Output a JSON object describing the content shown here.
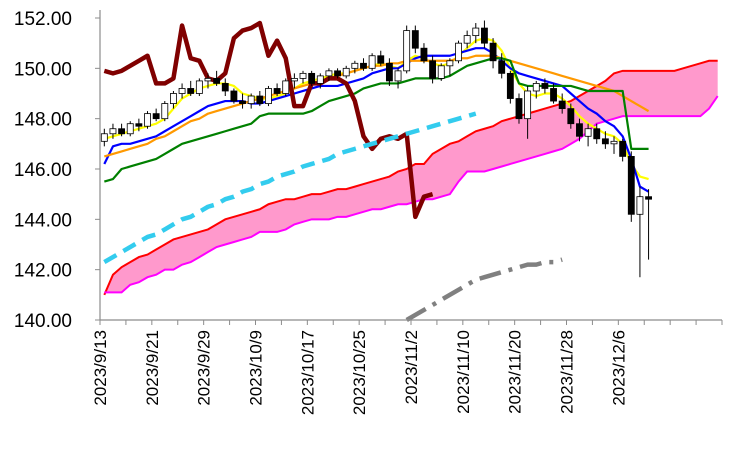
{
  "chart_data": {
    "type": "candlestick",
    "title": "",
    "xlabel": "",
    "ylabel": "",
    "ylim": [
      140,
      152
    ],
    "y_tick_labels": [
      "140.00",
      "142.00",
      "144.00",
      "146.00",
      "148.00",
      "150.00",
      "152.00"
    ],
    "y_ticks": [
      140,
      142,
      144,
      146,
      148,
      150,
      152
    ],
    "x_tick_labels": [
      "2023/9/13",
      "2023/9/21",
      "2023/9/29",
      "2023/10/9",
      "2023/10/17",
      "2023/10/25",
      "2023/11/2",
      "2023/11/10",
      "2023/11/20",
      "2023/11/28",
      "2023/12/6"
    ],
    "x_tick_index": [
      0,
      6,
      12,
      18,
      24,
      30,
      36,
      42,
      48,
      54,
      60
    ],
    "x_slots": 72,
    "grid": false,
    "legend": "none",
    "candles": {
      "up_fill": "#ffffff",
      "up_stroke": "#000000",
      "down_fill": "#000000",
      "ohlc": [
        [
          147.1,
          147.6,
          146.9,
          147.4
        ],
        [
          147.4,
          147.8,
          147.2,
          147.6
        ],
        [
          147.6,
          147.8,
          147.3,
          147.4
        ],
        [
          147.4,
          147.9,
          147.3,
          147.8
        ],
        [
          147.8,
          148.0,
          147.5,
          147.7
        ],
        [
          147.7,
          148.3,
          147.6,
          148.2
        ],
        [
          148.2,
          148.4,
          147.9,
          148.0
        ],
        [
          148.0,
          148.7,
          147.9,
          148.6
        ],
        [
          148.6,
          149.1,
          148.4,
          149.0
        ],
        [
          149.0,
          149.4,
          148.8,
          149.2
        ],
        [
          149.2,
          149.5,
          148.9,
          149.0
        ],
        [
          149.0,
          149.6,
          148.9,
          149.5
        ],
        [
          149.5,
          149.8,
          149.2,
          149.6
        ],
        [
          149.6,
          149.9,
          149.3,
          149.4
        ],
        [
          149.4,
          149.6,
          148.9,
          149.1
        ],
        [
          149.1,
          149.2,
          148.6,
          148.7
        ],
        [
          148.7,
          149.0,
          148.4,
          148.6
        ],
        [
          148.6,
          149.0,
          148.4,
          148.9
        ],
        [
          148.9,
          149.1,
          148.5,
          148.6
        ],
        [
          148.6,
          149.3,
          148.5,
          149.2
        ],
        [
          149.2,
          149.4,
          148.9,
          149.0
        ],
        [
          149.0,
          149.6,
          148.9,
          149.5
        ],
        [
          149.5,
          149.8,
          149.2,
          149.6
        ],
        [
          149.6,
          149.9,
          149.4,
          149.8
        ],
        [
          149.8,
          149.9,
          149.3,
          149.4
        ],
        [
          149.4,
          149.8,
          149.2,
          149.7
        ],
        [
          149.7,
          150.0,
          149.5,
          149.9
        ],
        [
          149.9,
          150.0,
          149.6,
          149.7
        ],
        [
          149.7,
          150.1,
          149.6,
          150.0
        ],
        [
          150.0,
          150.3,
          149.8,
          150.2
        ],
        [
          150.2,
          150.4,
          149.9,
          150.0
        ],
        [
          150.0,
          150.6,
          149.9,
          150.5
        ],
        [
          150.5,
          150.7,
          150.1,
          150.2
        ],
        [
          150.2,
          150.4,
          149.3,
          149.5
        ],
        [
          149.5,
          150.0,
          149.2,
          149.9
        ],
        [
          149.9,
          151.7,
          149.8,
          151.5
        ],
        [
          151.5,
          151.7,
          150.6,
          150.8
        ],
        [
          150.8,
          151.0,
          150.2,
          150.3
        ],
        [
          150.3,
          150.5,
          149.4,
          149.6
        ],
        [
          149.6,
          150.2,
          149.5,
          150.1
        ],
        [
          150.1,
          150.4,
          149.7,
          150.3
        ],
        [
          150.3,
          151.1,
          150.2,
          151.0
        ],
        [
          151.0,
          151.5,
          150.8,
          151.3
        ],
        [
          151.3,
          151.8,
          151.0,
          151.6
        ],
        [
          151.6,
          151.9,
          150.8,
          151.0
        ],
        [
          151.0,
          151.2,
          150.0,
          150.3
        ],
        [
          150.3,
          150.6,
          149.6,
          149.8
        ],
        [
          149.8,
          149.9,
          148.6,
          148.8
        ],
        [
          148.8,
          149.0,
          147.8,
          148.0
        ],
        [
          148.0,
          149.3,
          147.2,
          149.1
        ],
        [
          149.1,
          149.5,
          148.8,
          149.4
        ],
        [
          149.4,
          149.6,
          149.0,
          149.2
        ],
        [
          149.2,
          149.4,
          148.6,
          148.7
        ],
        [
          148.7,
          149.0,
          148.2,
          148.4
        ],
        [
          148.4,
          148.6,
          147.6,
          147.8
        ],
        [
          147.8,
          148.0,
          147.1,
          147.3
        ],
        [
          147.3,
          147.8,
          146.9,
          147.6
        ],
        [
          147.6,
          147.8,
          147.0,
          147.2
        ],
        [
          147.2,
          147.5,
          146.8,
          147.0
        ],
        [
          147.0,
          147.3,
          146.6,
          147.1
        ],
        [
          147.1,
          147.2,
          146.3,
          146.5
        ],
        [
          146.5,
          146.7,
          143.9,
          144.2
        ],
        [
          144.2,
          145.3,
          141.7,
          144.9
        ],
        [
          144.9,
          145.2,
          142.4,
          144.8
        ]
      ]
    },
    "series": [
      {
        "kind": "line",
        "color": "#ffff00",
        "stroke_width": 2.2,
        "dash": "",
        "start": 0,
        "values": [
          147.2,
          147.3,
          147.4,
          147.5,
          147.6,
          147.7,
          147.8,
          148.0,
          148.4,
          148.8,
          149.0,
          149.2,
          149.3,
          149.4,
          149.4,
          149.3,
          149.0,
          148.9,
          148.8,
          148.8,
          148.9,
          149.0,
          149.2,
          149.4,
          149.5,
          149.6,
          149.7,
          149.8,
          149.8,
          149.9,
          150.0,
          150.1,
          150.2,
          150.1,
          150.0,
          150.3,
          150.5,
          150.4,
          150.2,
          150.1,
          150.2,
          150.5,
          150.8,
          151.1,
          151.2,
          151.1,
          150.7,
          150.0,
          149.4,
          149.0,
          148.9,
          149.0,
          149.0,
          148.8,
          148.5,
          148.1,
          147.8,
          147.6,
          147.4,
          147.3,
          147.0,
          146.2,
          145.7,
          145.6
        ]
      },
      {
        "kind": "line",
        "color": "#0000ff",
        "stroke_width": 2.2,
        "dash": "",
        "start": 0,
        "values": [
          146.2,
          146.9,
          147.0,
          147.0,
          147.1,
          147.2,
          147.3,
          147.5,
          147.7,
          147.9,
          148.1,
          148.3,
          148.5,
          148.6,
          148.7,
          148.7,
          148.7,
          148.6,
          148.6,
          148.7,
          148.8,
          148.9,
          149.0,
          149.1,
          149.2,
          149.3,
          149.3,
          149.3,
          149.4,
          149.5,
          149.6,
          149.8,
          149.9,
          150.0,
          150.0,
          150.2,
          150.4,
          150.5,
          150.5,
          150.5,
          150.5,
          150.6,
          150.7,
          150.8,
          150.8,
          150.6,
          150.3,
          150.0,
          149.8,
          149.7,
          149.6,
          149.5,
          149.4,
          149.3,
          149.0,
          148.7,
          148.4,
          148.2,
          147.9,
          147.7,
          147.3,
          146.4,
          145.3,
          145.1
        ]
      },
      {
        "kind": "line",
        "color": "#ff9900",
        "stroke_width": 2.2,
        "dash": "",
        "start": 0,
        "values": [
          146.5,
          146.6,
          146.7,
          146.8,
          146.9,
          147.0,
          147.2,
          147.3,
          147.5,
          147.7,
          147.9,
          148.0,
          148.2,
          148.3,
          148.4,
          148.5,
          148.6,
          148.7,
          148.8,
          148.9,
          149.0,
          149.1,
          149.2,
          149.3,
          149.4,
          149.5,
          149.6,
          149.7,
          149.8,
          149.9,
          150.0,
          150.1,
          150.1,
          150.2,
          150.2,
          150.3,
          150.3,
          150.3,
          150.3,
          150.3,
          150.3,
          150.4,
          150.4,
          150.5,
          150.5,
          150.5,
          150.4,
          150.3,
          150.2,
          150.1,
          150.0,
          149.9,
          149.8,
          149.7,
          149.6,
          149.5,
          149.4,
          149.3,
          149.2,
          149.1,
          148.9,
          148.7,
          148.5,
          148.3
        ]
      },
      {
        "kind": "line",
        "color": "#008000",
        "stroke_width": 2.2,
        "dash": "",
        "start": 0,
        "values": [
          145.5,
          145.6,
          146.0,
          146.1,
          146.2,
          146.3,
          146.4,
          146.6,
          146.8,
          147.0,
          147.1,
          147.2,
          147.3,
          147.4,
          147.5,
          147.6,
          147.7,
          147.8,
          148.1,
          148.2,
          148.2,
          148.2,
          148.2,
          148.2,
          148.3,
          148.5,
          148.7,
          148.8,
          148.9,
          149.0,
          149.2,
          149.3,
          149.4,
          149.4,
          149.4,
          149.5,
          149.6,
          149.6,
          149.6,
          149.6,
          149.7,
          149.9,
          150.1,
          150.2,
          150.3,
          150.4,
          150.4,
          150.3,
          149.4,
          149.3,
          149.3,
          149.3,
          149.3,
          149.3,
          149.3,
          149.2,
          149.1,
          149.1,
          149.1,
          149.1,
          149.1,
          146.8,
          146.8,
          146.8
        ]
      },
      {
        "kind": "line",
        "color": "#800000",
        "stroke_width": 4.5,
        "dash": "",
        "start": 0,
        "values": [
          149.9,
          149.8,
          149.9,
          150.1,
          150.3,
          150.5,
          149.4,
          149.4,
          149.6,
          151.7,
          150.4,
          150.3,
          149.6,
          149.5,
          149.8,
          151.2,
          151.5,
          151.6,
          151.8,
          150.5,
          151.1,
          150.4,
          148.5,
          148.5,
          149.4,
          149.4,
          149.6,
          149.6,
          149.4,
          148.7,
          147.3,
          146.8,
          147.2,
          147.3,
          147.2,
          147.4,
          144.1,
          144.9,
          145.0
        ]
      },
      {
        "kind": "line",
        "color": "#33ccee",
        "stroke_width": 4.5,
        "dash": "14,8",
        "start": 0,
        "values": [
          142.3,
          142.5,
          142.7,
          142.9,
          143.1,
          143.3,
          143.4,
          143.6,
          143.8,
          144.0,
          144.1,
          144.3,
          144.5,
          144.6,
          144.8,
          144.9,
          145.1,
          145.2,
          145.4,
          145.5,
          145.7,
          145.8,
          145.9,
          146.1,
          146.2,
          146.3,
          146.4,
          146.6,
          146.7,
          146.8,
          146.9,
          147.0,
          147.1,
          147.2,
          147.3,
          147.4,
          147.5,
          147.6,
          147.7,
          147.8,
          147.9,
          148.0,
          148.1,
          148.2
        ]
      },
      {
        "kind": "line",
        "color": "#808080",
        "stroke_width": 4.5,
        "dash": "22,8,4,8",
        "start": 35,
        "values": [
          140.0,
          140.2,
          140.4,
          140.6,
          140.8,
          141.0,
          141.2,
          141.4,
          141.6,
          141.7,
          141.8,
          141.9,
          142.0,
          142.1,
          142.2,
          142.2,
          142.3,
          142.3,
          142.4
        ]
      }
    ],
    "cloud": {
      "fill": "#ff99cc",
      "span_a_color": "#ff0000",
      "span_b_color": "#ff00ff",
      "span_a": [
        141.0,
        141.8,
        142.1,
        142.3,
        142.5,
        142.6,
        142.8,
        143.0,
        143.2,
        143.3,
        143.4,
        143.5,
        143.6,
        143.8,
        144.0,
        144.1,
        144.2,
        144.3,
        144.4,
        144.6,
        144.7,
        144.8,
        144.8,
        144.9,
        145.0,
        145.0,
        145.1,
        145.2,
        145.2,
        145.3,
        145.4,
        145.5,
        145.6,
        145.7,
        145.9,
        146.0,
        146.2,
        146.2,
        146.6,
        146.8,
        147.0,
        147.1,
        147.3,
        147.5,
        147.6,
        147.7,
        147.9,
        148.0,
        148.1,
        148.2,
        148.3,
        148.4,
        148.5,
        148.6,
        148.7,
        148.9,
        149.1,
        149.3,
        149.5,
        149.8,
        149.9,
        149.9,
        149.9,
        149.9,
        149.9,
        149.9,
        149.9,
        150.0,
        150.1,
        150.2,
        150.3,
        150.3
      ],
      "span_b": [
        141.1,
        141.1,
        141.1,
        141.4,
        141.5,
        141.7,
        141.8,
        142.0,
        142.0,
        142.2,
        142.3,
        142.5,
        142.7,
        142.9,
        143.0,
        143.1,
        143.2,
        143.3,
        143.5,
        143.5,
        143.5,
        143.6,
        143.8,
        143.9,
        144.0,
        144.0,
        144.0,
        144.1,
        144.1,
        144.2,
        144.3,
        144.4,
        144.4,
        144.5,
        144.6,
        144.6,
        144.7,
        144.8,
        144.8,
        144.9,
        145.0,
        145.5,
        145.9,
        145.9,
        145.9,
        146.0,
        146.1,
        146.2,
        146.3,
        146.4,
        146.5,
        146.6,
        146.7,
        146.8,
        147.0,
        147.2,
        147.5,
        147.8,
        147.9,
        148.0,
        148.1,
        148.1,
        148.1,
        148.1,
        148.1,
        148.1,
        148.1,
        148.1,
        148.1,
        148.1,
        148.4,
        148.9
      ]
    }
  }
}
